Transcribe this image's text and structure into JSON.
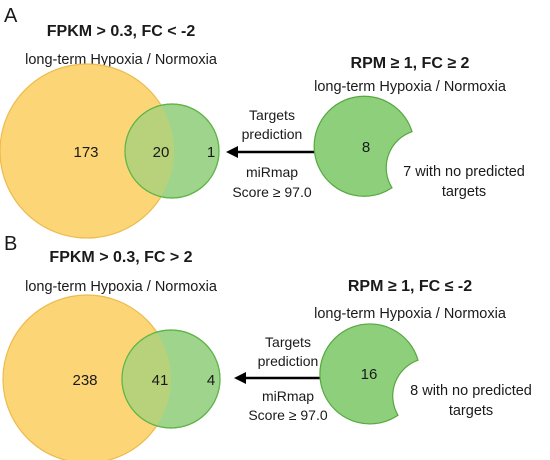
{
  "colors": {
    "large_fill": "#FCD577",
    "large_stroke": "#EDBB4E",
    "small_fill": "#9FD48C",
    "small_stroke": "#5FB548",
    "overlap_fill": "#B7D27A",
    "crescent_fill": "#8ECF7B",
    "crescent_stroke": "#56A83F",
    "arrow": "#000000"
  },
  "panels": [
    {
      "label": "A",
      "left_title": "FPKM > 0.3, FC < -2",
      "left_subtitle": "long-term Hypoxia / Normoxia",
      "right_title": "RPM ≥ 1, FC ≥ 2",
      "right_subtitle": "long-term Hypoxia / Normoxia",
      "venn": {
        "only_large": "173",
        "overlap": "20",
        "only_small": "1"
      },
      "arrow": {
        "icon": "left-arrow-icon",
        "label_top": [
          "Targets",
          "prediction"
        ],
        "label_bottom": [
          "miRmap",
          "Score ≥ 97.0"
        ]
      },
      "crescent": {
        "count": "8",
        "note": [
          "7 with no predicted",
          "targets"
        ]
      }
    },
    {
      "label": "B",
      "left_title": "FPKM > 0.3, FC > 2",
      "left_subtitle": "long-term Hypoxia / Normoxia",
      "right_title": "RPM ≥ 1, FC ≤ -2",
      "right_subtitle": "long-term Hypoxia / Normoxia",
      "venn": {
        "only_large": "238",
        "overlap": "41",
        "only_small": "4"
      },
      "arrow": {
        "icon": "left-arrow-icon",
        "label_top": [
          "Targets",
          "prediction"
        ],
        "label_bottom": [
          "miRmap",
          "Score ≥ 97.0"
        ]
      },
      "crescent": {
        "count": "16",
        "note": [
          "8 with no predicted",
          "targets"
        ]
      }
    }
  ]
}
